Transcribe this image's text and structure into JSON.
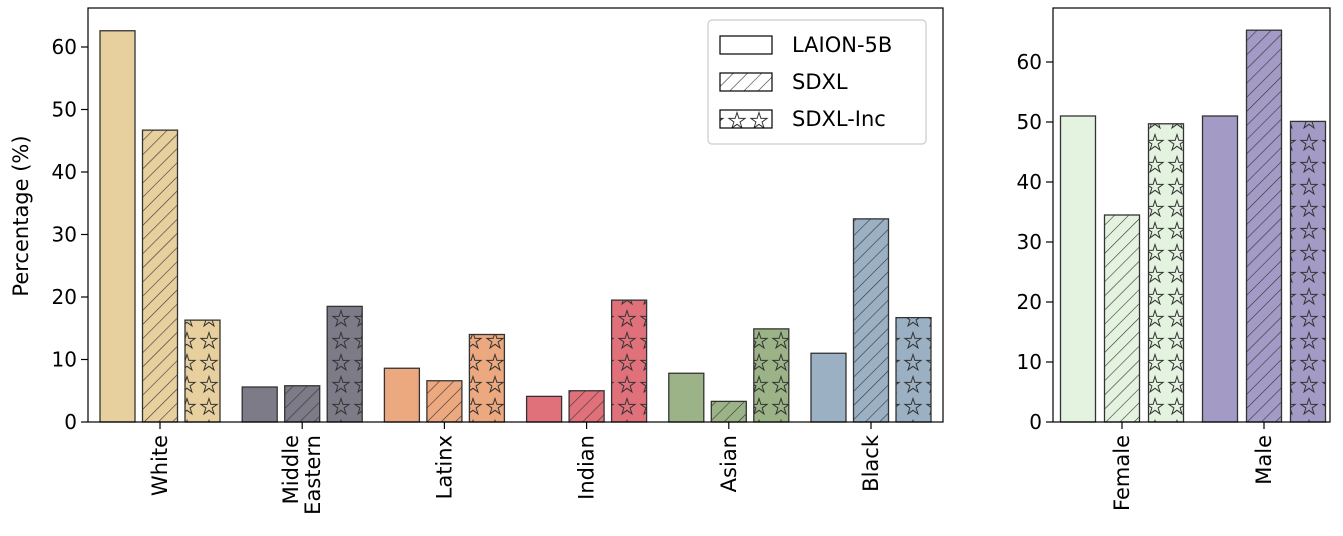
{
  "chart_data": [
    {
      "type": "bar",
      "ylabel": "Percentage (%)",
      "ylim": [
        0,
        66
      ],
      "yticks": [
        "0",
        "10",
        "20",
        "30",
        "40",
        "50",
        "60"
      ],
      "categories": [
        "White",
        "Middle Eastern",
        "Latinx",
        "Indian",
        "Asian",
        "Black"
      ],
      "category_colors": [
        "#e8cf9e",
        "#7e7b88",
        "#eca87f",
        "#e0717b",
        "#9bb386",
        "#9bb1c3"
      ],
      "series": [
        {
          "name": "LAION-5B",
          "pattern": "none",
          "values": [
            62.6,
            5.6,
            8.6,
            4.1,
            7.8,
            11.0
          ]
        },
        {
          "name": "SDXL",
          "pattern": "hatch",
          "values": [
            46.7,
            5.8,
            6.6,
            5.0,
            3.3,
            32.5
          ]
        },
        {
          "name": "SDXL-Inc",
          "pattern": "stars",
          "values": [
            16.3,
            18.5,
            14.0,
            19.5,
            14.9,
            16.7
          ]
        }
      ],
      "legend": {
        "placement": "top-right",
        "entries": [
          "LAION-5B",
          "SDXL",
          "SDXL-Inc"
        ]
      },
      "grid": false
    },
    {
      "type": "bar",
      "ylim": [
        0,
        68
      ],
      "yticks": [
        "0",
        "10",
        "20",
        "30",
        "40",
        "50",
        "60"
      ],
      "categories": [
        "Female",
        "Male"
      ],
      "category_colors": [
        "#e4f2e0",
        "#a39ac6"
      ],
      "series": [
        {
          "name": "LAION-5B",
          "pattern": "none",
          "values": [
            51.0,
            51.0
          ]
        },
        {
          "name": "SDXL",
          "pattern": "hatch",
          "values": [
            34.5,
            65.3
          ]
        },
        {
          "name": "SDXL-Inc",
          "pattern": "stars",
          "values": [
            49.7,
            50.1
          ]
        }
      ],
      "grid": false
    }
  ]
}
